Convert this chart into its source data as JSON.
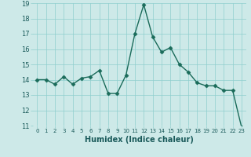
{
  "x": [
    0,
    1,
    2,
    3,
    4,
    5,
    6,
    7,
    8,
    9,
    10,
    11,
    12,
    13,
    14,
    15,
    16,
    17,
    18,
    19,
    20,
    21,
    22,
    23
  ],
  "y": [
    14.0,
    14.0,
    13.7,
    14.2,
    13.7,
    14.1,
    14.2,
    14.6,
    13.1,
    13.1,
    14.3,
    17.0,
    18.9,
    16.8,
    15.8,
    16.1,
    15.0,
    14.5,
    13.8,
    13.6,
    13.6,
    13.3,
    13.3,
    10.9
  ],
  "xlabel": "Humidex (Indice chaleur)",
  "ylim": [
    11,
    19
  ],
  "xlim": [
    -0.5,
    23.5
  ],
  "yticks": [
    11,
    12,
    13,
    14,
    15,
    16,
    17,
    18,
    19
  ],
  "xticks": [
    0,
    1,
    2,
    3,
    4,
    5,
    6,
    7,
    8,
    9,
    10,
    11,
    12,
    13,
    14,
    15,
    16,
    17,
    18,
    19,
    20,
    21,
    22,
    23
  ],
  "line_color": "#1a6b5a",
  "marker_color": "#1a6b5a",
  "bg_color": "#cde9e8",
  "grid_color": "#8ecece",
  "xlabel_fontsize": 7,
  "xtick_fontsize": 5,
  "ytick_fontsize": 6
}
